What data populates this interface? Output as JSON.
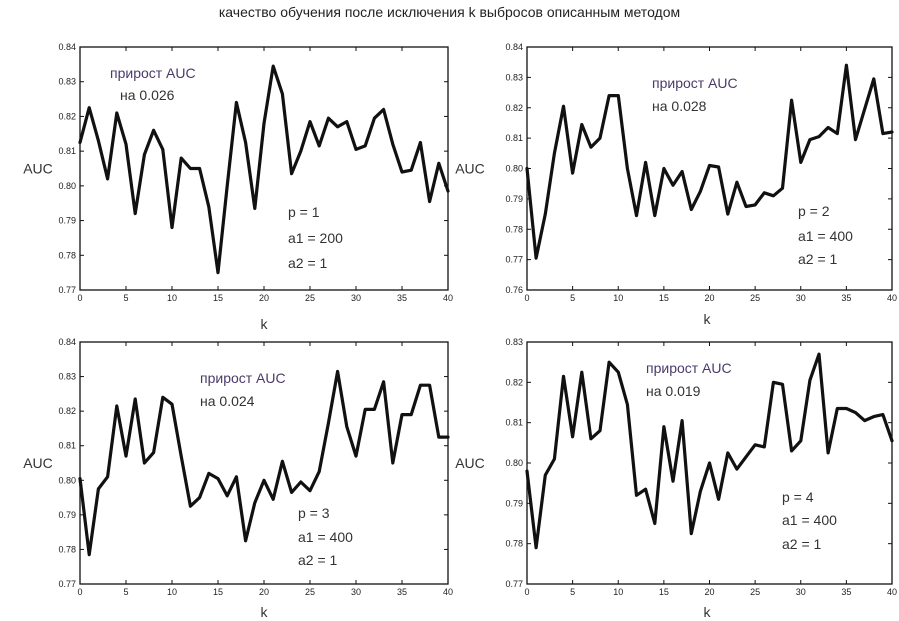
{
  "title": "качество обучения после исключения k выбросов описанным методом",
  "colors": {
    "line": "#111111",
    "frame": "#111111",
    "text": "#333333",
    "annotation_header": "#4a3a6a"
  },
  "chart_data": [
    {
      "type": "line",
      "title": "",
      "xlabel": "k",
      "ylabel": "AUC",
      "xlim": [
        0,
        40
      ],
      "ylim": [
        0.77,
        0.84
      ],
      "xticks": [
        "0",
        "5",
        "10",
        "15",
        "20",
        "25",
        "30",
        "35",
        "40"
      ],
      "yticks": [
        "0.77",
        "0.78",
        "0.79",
        "0.80",
        "0.81",
        "0.82",
        "0.83",
        "0.84"
      ],
      "grid": false,
      "annotations": [
        "прирост AUC",
        "на 0.026",
        "p = 1",
        "a1 = 200",
        "a2 = 1"
      ],
      "x": [
        0,
        1,
        2,
        3,
        4,
        5,
        6,
        7,
        8,
        9,
        10,
        11,
        12,
        13,
        14,
        15,
        16,
        17,
        18,
        19,
        20,
        21,
        22,
        23,
        24,
        25,
        26,
        27,
        28,
        29,
        30,
        31,
        32,
        33,
        34,
        35,
        36,
        37,
        38,
        39,
        40
      ],
      "series": [
        {
          "values": [
            0.8125,
            0.8225,
            0.813,
            0.802,
            0.821,
            0.812,
            0.792,
            0.809,
            0.816,
            0.8105,
            0.788,
            0.808,
            0.805,
            0.805,
            0.794,
            0.775,
            0.8,
            0.824,
            0.8125,
            0.7935,
            0.818,
            0.8345,
            0.8265,
            0.8035,
            0.81,
            0.8185,
            0.8115,
            0.8195,
            0.817,
            0.8185,
            0.8105,
            0.8115,
            0.8195,
            0.822,
            0.812,
            0.804,
            0.8045,
            0.8125,
            0.7955,
            0.8065,
            0.7985
          ]
        }
      ]
    },
    {
      "type": "line",
      "title": "",
      "xlabel": "k",
      "ylabel": "AUC",
      "xlim": [
        0,
        40
      ],
      "ylim": [
        0.76,
        0.84
      ],
      "xticks": [
        "0",
        "5",
        "10",
        "15",
        "20",
        "25",
        "30",
        "35",
        "40"
      ],
      "yticks": [
        "0.76",
        "0.77",
        "0.78",
        "0.79",
        "0.80",
        "0.81",
        "0.82",
        "0.83",
        "0.84"
      ],
      "grid": false,
      "annotations": [
        "прирост AUC",
        "на 0.028",
        "p = 2",
        "a1 = 400",
        "a2 = 1"
      ],
      "x": [
        0,
        1,
        2,
        3,
        4,
        5,
        6,
        7,
        8,
        9,
        10,
        11,
        12,
        13,
        14,
        15,
        16,
        17,
        18,
        19,
        20,
        21,
        22,
        23,
        24,
        25,
        26,
        27,
        28,
        29,
        30,
        31,
        32,
        33,
        34,
        35,
        36,
        37,
        38,
        39,
        40
      ],
      "series": [
        {
          "values": [
            0.8,
            0.7705,
            0.785,
            0.805,
            0.8205,
            0.7985,
            0.8145,
            0.807,
            0.81,
            0.824,
            0.824,
            0.8,
            0.7845,
            0.802,
            0.7845,
            0.8,
            0.7945,
            0.799,
            0.7865,
            0.7925,
            0.801,
            0.8005,
            0.785,
            0.7955,
            0.7875,
            0.788,
            0.792,
            0.791,
            0.7935,
            0.8225,
            0.802,
            0.8095,
            0.8105,
            0.8135,
            0.8115,
            0.834,
            0.8095,
            0.8195,
            0.8295,
            0.8115,
            0.812
          ]
        }
      ]
    },
    {
      "type": "line",
      "title": "",
      "xlabel": "k",
      "ylabel": "AUC",
      "xlim": [
        0,
        40
      ],
      "ylim": [
        0.77,
        0.84
      ],
      "xticks": [
        "0",
        "5",
        "10",
        "15",
        "20",
        "25",
        "30",
        "35",
        "40"
      ],
      "yticks": [
        "0.77",
        "0.78",
        "0.79",
        "0.80",
        "0.81",
        "0.82",
        "0.83",
        "0.84"
      ],
      "grid": false,
      "annotations": [
        "прирост AUC",
        "на 0.024",
        "p = 3",
        "a1 = 400",
        "a2 = 1"
      ],
      "x": [
        0,
        1,
        2,
        3,
        4,
        5,
        6,
        7,
        8,
        9,
        10,
        11,
        12,
        13,
        14,
        15,
        16,
        17,
        18,
        19,
        20,
        21,
        22,
        23,
        24,
        25,
        26,
        27,
        28,
        29,
        30,
        31,
        32,
        33,
        34,
        35,
        36,
        37,
        38,
        39,
        40
      ],
      "series": [
        {
          "values": [
            0.8005,
            0.7785,
            0.7975,
            0.801,
            0.8215,
            0.807,
            0.8235,
            0.805,
            0.808,
            0.824,
            0.822,
            0.807,
            0.7925,
            0.795,
            0.802,
            0.8005,
            0.7955,
            0.801,
            0.7825,
            0.7935,
            0.8,
            0.7945,
            0.8055,
            0.7965,
            0.7995,
            0.797,
            0.8025,
            0.8165,
            0.8315,
            0.8155,
            0.807,
            0.8205,
            0.8205,
            0.8285,
            0.805,
            0.819,
            0.819,
            0.8275,
            0.8275,
            0.8125,
            0.8125
          ]
        }
      ]
    },
    {
      "type": "line",
      "title": "",
      "xlabel": "k",
      "ylabel": "AUC",
      "xlim": [
        0,
        40
      ],
      "ylim": [
        0.77,
        0.83
      ],
      "xticks": [
        "0",
        "5",
        "10",
        "15",
        "20",
        "25",
        "30",
        "35",
        "40"
      ],
      "yticks": [
        "0.77",
        "0.78",
        "0.79",
        "0.80",
        "0.81",
        "0.82",
        "0.83"
      ],
      "grid": false,
      "annotations": [
        "прирост AUC",
        "на 0.019",
        "p = 4",
        "a1 = 400",
        "a2 = 1"
      ],
      "x": [
        0,
        1,
        2,
        3,
        4,
        5,
        6,
        7,
        8,
        9,
        10,
        11,
        12,
        13,
        14,
        15,
        16,
        17,
        18,
        19,
        20,
        21,
        22,
        23,
        24,
        25,
        26,
        27,
        28,
        29,
        30,
        31,
        32,
        33,
        34,
        35,
        36,
        37,
        38,
        39,
        40
      ],
      "series": [
        {
          "values": [
            0.798,
            0.779,
            0.797,
            0.801,
            0.8215,
            0.8065,
            0.8225,
            0.806,
            0.808,
            0.825,
            0.8225,
            0.8145,
            0.792,
            0.7935,
            0.785,
            0.809,
            0.7955,
            0.8105,
            0.7825,
            0.793,
            0.8,
            0.791,
            0.8025,
            0.7985,
            0.8015,
            0.8045,
            0.804,
            0.82,
            0.8195,
            0.803,
            0.8055,
            0.8205,
            0.827,
            0.8025,
            0.8135,
            0.8135,
            0.8125,
            0.8105,
            0.8115,
            0.812,
            0.8055
          ]
        }
      ]
    }
  ]
}
